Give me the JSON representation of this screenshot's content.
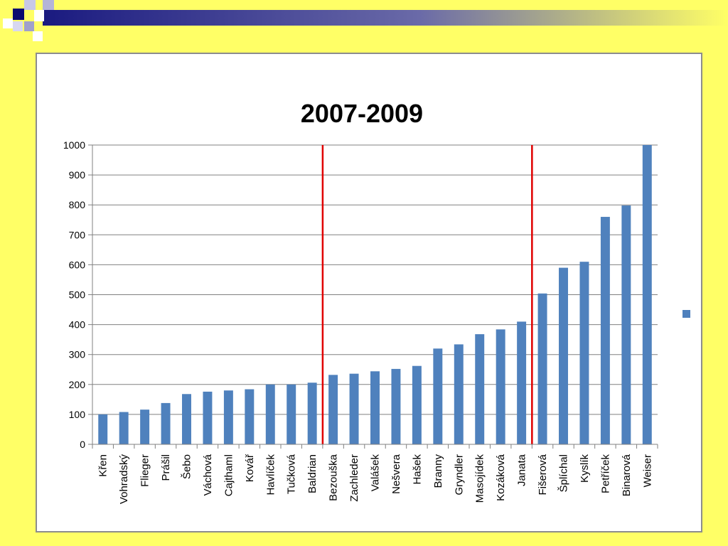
{
  "colors": {
    "slide_background": "#ffff66",
    "bar": "#4f81bd",
    "marker_line": "#e00000",
    "grid": "#808080"
  },
  "chart_data": {
    "type": "bar",
    "title": "2007-2009",
    "xlabel": "",
    "ylabel": "",
    "ylim": [
      0,
      1000
    ],
    "yticks": [
      0,
      100,
      200,
      300,
      400,
      500,
      600,
      700,
      800,
      900,
      1000
    ],
    "grid": true,
    "legend": "right",
    "categories": [
      "Křen",
      "Vohradský",
      "Flieger",
      "Prášil",
      "Šebo",
      "Váchová",
      "Cajthaml",
      "Kovář",
      "Havlíček",
      "Tučková",
      "Baldrian",
      "Bezouška",
      "Zachleder",
      "Valášek",
      "Nešvera",
      "Hašek",
      "Branny",
      "Gryndler",
      "Masojídek",
      "Kozáková",
      "Janata",
      "Fišerová",
      "Šplíchal",
      "Kyslík",
      "Petříček",
      "Binarová",
      "Weiser"
    ],
    "values": [
      100,
      108,
      116,
      138,
      168,
      176,
      180,
      184,
      200,
      200,
      206,
      232,
      236,
      244,
      252,
      262,
      320,
      334,
      368,
      384,
      410,
      504,
      590,
      610,
      760,
      798,
      1000
    ],
    "vertical_markers": [
      "Baldrian|Bezouška",
      "Janata|Fišerová"
    ]
  }
}
